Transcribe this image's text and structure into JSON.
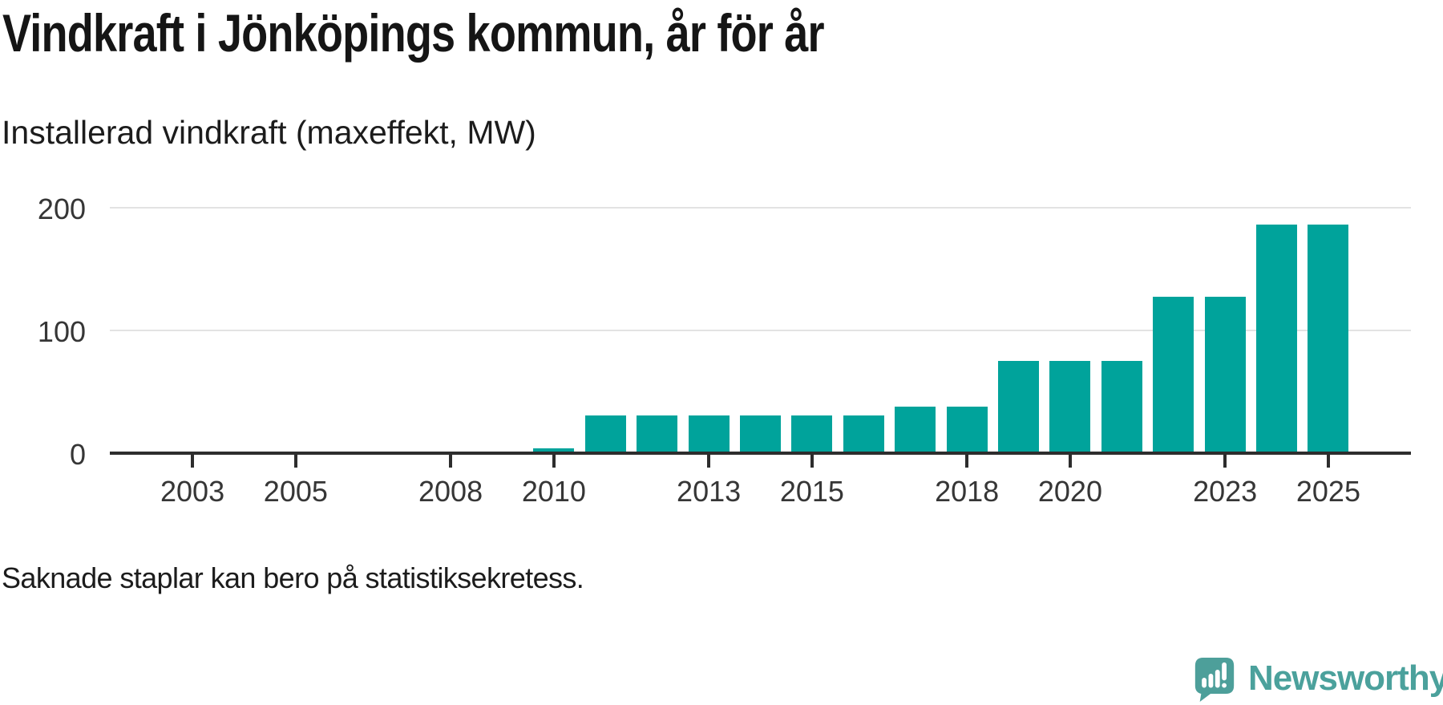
{
  "title": "Vindkraft i Jönköpings kommun, år för år",
  "subtitle": "Installerad vindkraft (maxeffekt, MW)",
  "footnote": "Saknade staplar kan bero på statistiksekretess.",
  "branding": {
    "name": "Newsworthy",
    "icon": "speech-bubble-bar-chart-icon",
    "icon_color": "#4d9f9a",
    "text_color": "#4ba19c"
  },
  "colors": {
    "bar": "#00a39b",
    "axis": "#2d2d2d",
    "gridline": "#e3e3e3",
    "title_text": "#151515",
    "body_text": "#1c1c1c",
    "tick_text": "#363636"
  },
  "chart_data": {
    "type": "bar",
    "title": "Vindkraft i Jönköpings kommun, år för år",
    "ylabel": "Installerad vindkraft (maxeffekt, MW)",
    "unit": "MW",
    "categories": [
      2002,
      2003,
      2004,
      2005,
      2006,
      2007,
      2008,
      2009,
      2010,
      2011,
      2012,
      2013,
      2014,
      2015,
      2016,
      2017,
      2018,
      2019,
      2020,
      2021,
      2022,
      2023,
      2024,
      2025
    ],
    "values": [
      null,
      null,
      null,
      null,
      null,
      null,
      null,
      null,
      4,
      31,
      31,
      31,
      31,
      31,
      31,
      38,
      38,
      75,
      75,
      75,
      127,
      127,
      186,
      186
    ],
    "missing_values_meaning": "Saknade staplar kan bero på statistiksekretess.",
    "ylim": [
      0,
      200
    ],
    "y_ticks": [
      0,
      100,
      200
    ],
    "x_ticks": [
      2003,
      2005,
      2008,
      2010,
      2013,
      2015,
      2018,
      2020,
      2023,
      2025
    ],
    "xlim": [
      2001.4,
      2026.6
    ],
    "grid": "horizontal",
    "legend": "none"
  }
}
